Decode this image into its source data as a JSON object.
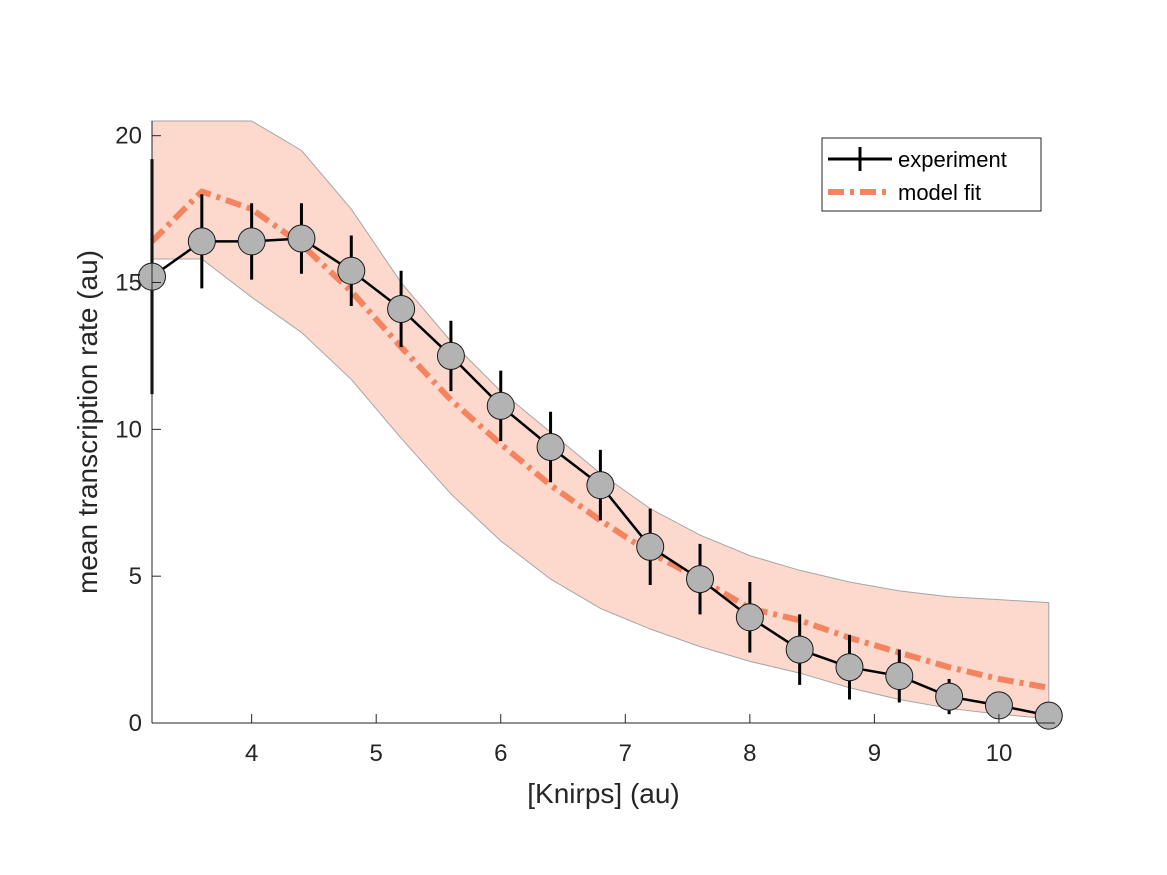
{
  "chart_data": {
    "type": "line",
    "title": "",
    "xlabel": "[Knirps] (au)",
    "ylabel": "mean transcription rate (au)",
    "xlim": [
      3.2,
      10.45
    ],
    "ylim": [
      0,
      20.5
    ],
    "xticks": [
      4,
      5,
      6,
      7,
      8,
      9,
      10
    ],
    "yticks": [
      0,
      5,
      10,
      15,
      20
    ],
    "grid": false,
    "legend_position": "top-right",
    "colors": {
      "experiment": "#000000",
      "marker_fill": "#b3b3b3",
      "model": "#f4845f",
      "band": "#fcd9cc"
    },
    "series": [
      {
        "name": "experiment",
        "style": "line-with-markers-and-errorbars",
        "x": [
          3.2,
          3.6,
          4.0,
          4.4,
          4.8,
          5.2,
          5.6,
          6.0,
          6.4,
          6.8,
          7.2,
          7.6,
          8.0,
          8.4,
          8.8,
          9.2,
          9.6,
          10.0,
          10.4
        ],
        "y": [
          15.2,
          16.4,
          16.4,
          16.5,
          15.4,
          14.1,
          12.5,
          10.8,
          9.4,
          8.1,
          6.0,
          4.9,
          3.6,
          2.5,
          1.9,
          1.6,
          0.9,
          0.6,
          0.25
        ],
        "err": [
          4.0,
          1.6,
          1.3,
          1.2,
          1.2,
          1.3,
          1.2,
          1.2,
          1.2,
          1.2,
          1.3,
          1.2,
          1.2,
          1.2,
          1.1,
          0.9,
          0.6,
          0.4,
          0.2
        ]
      },
      {
        "name": "model fit",
        "style": "dash-dot",
        "x": [
          3.2,
          3.6,
          4.0,
          4.4,
          4.8,
          5.2,
          5.6,
          6.0,
          6.4,
          6.8,
          7.2,
          7.6,
          8.0,
          8.4,
          8.8,
          9.2,
          9.6,
          10.0,
          10.4
        ],
        "y": [
          16.4,
          18.1,
          17.5,
          16.3,
          14.7,
          12.8,
          11.0,
          9.5,
          8.1,
          6.9,
          5.8,
          4.9,
          3.9,
          3.5,
          2.9,
          2.4,
          1.9,
          1.5,
          1.2
        ],
        "band_upper": [
          20.5,
          20.5,
          20.5,
          19.5,
          17.5,
          15.0,
          13.0,
          11.3,
          9.9,
          8.5,
          7.3,
          6.4,
          5.7,
          5.2,
          4.8,
          4.5,
          4.3,
          4.2,
          4.1
        ],
        "band_lower": [
          15.8,
          15.8,
          14.5,
          13.3,
          11.7,
          9.7,
          7.8,
          6.2,
          4.9,
          3.9,
          3.2,
          2.6,
          2.1,
          1.7,
          1.2,
          0.8,
          0.5,
          0.3,
          0.15
        ]
      }
    ]
  }
}
